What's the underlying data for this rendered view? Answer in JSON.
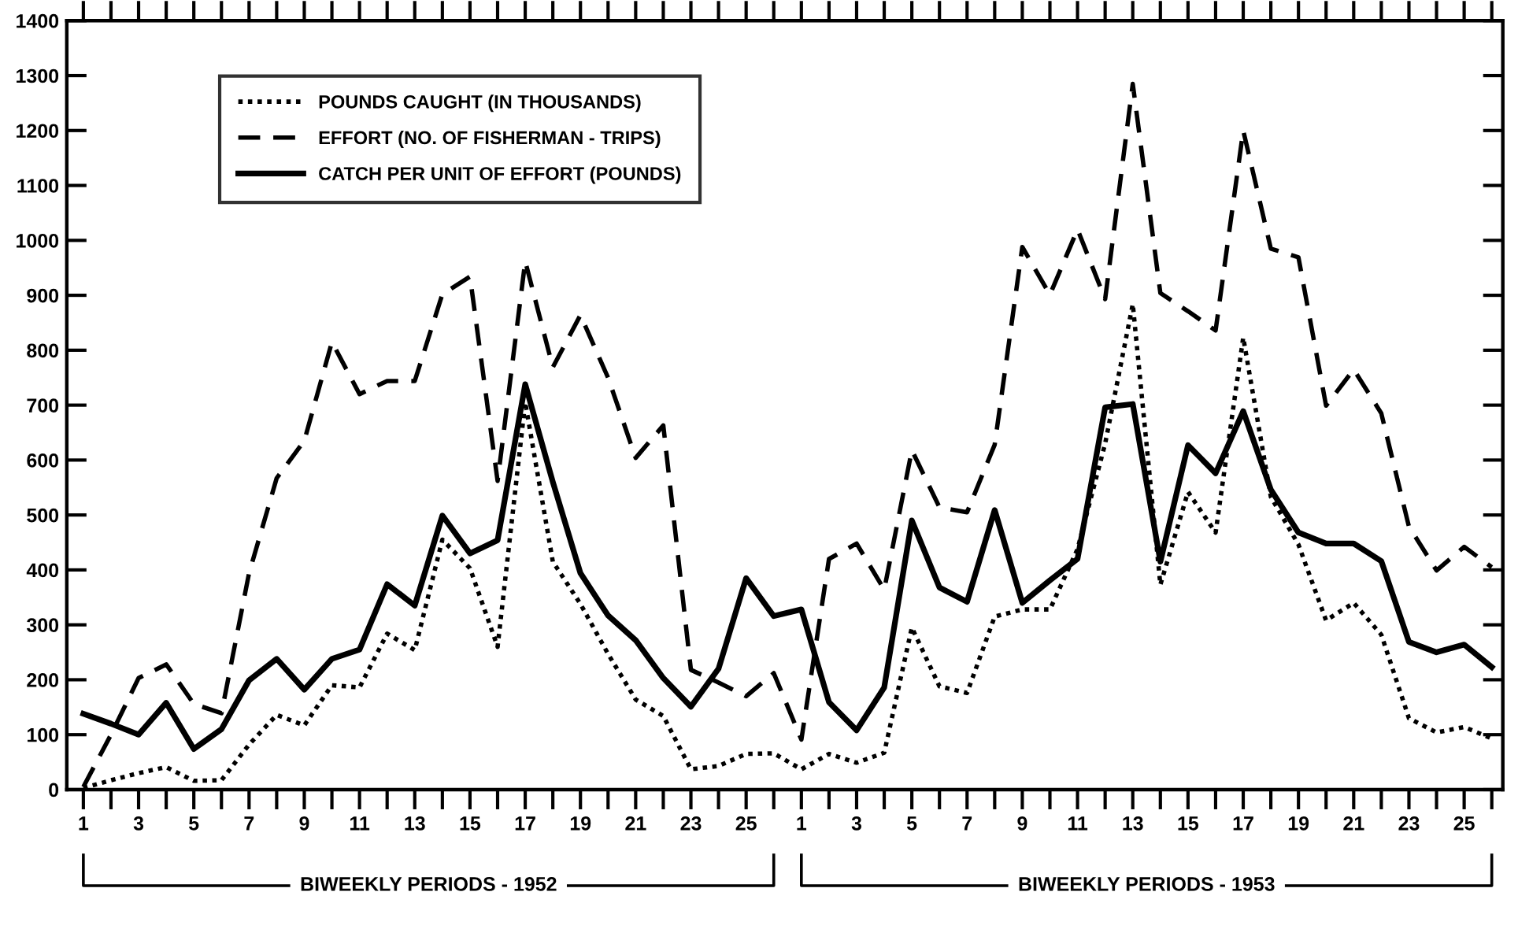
{
  "chart_data": {
    "type": "line",
    "categories": [
      "1",
      null,
      "3",
      null,
      "5",
      null,
      "7",
      null,
      "9",
      null,
      "11",
      null,
      "13",
      null,
      "15",
      null,
      "17",
      null,
      "19",
      null,
      "21",
      null,
      "23",
      null,
      "25",
      null,
      "1",
      null,
      "3",
      null,
      "5",
      null,
      "7",
      null,
      "9",
      null,
      "11",
      null,
      "13",
      null,
      "15",
      null,
      "17",
      null,
      "19",
      null,
      "21",
      null,
      "23",
      null,
      "25",
      null
    ],
    "series": [
      {
        "name": "POUNDS CAUGHT (IN THOUSANDS)",
        "color": "#000000",
        "line_style": "dotted",
        "values": [
          3,
          17,
          30,
          41,
          16,
          17,
          82,
          136,
          117,
          190,
          186,
          284,
          254,
          455,
          403,
          260,
          705,
          415,
          338,
          247,
          164,
          134,
          37,
          43,
          65,
          66,
          37,
          65,
          49,
          67,
          295,
          188,
          176,
          315,
          328,
          328,
          438,
          630,
          884,
          373,
          542,
          468,
          823,
          533,
          446,
          308,
          340,
          282,
          130,
          104,
          114,
          93
        ]
      },
      {
        "name": "EFFORT (NO. OF FISHERMAN - TRIPS)",
        "color": "#000000",
        "line_style": "dashed",
        "values": [
          5,
          100,
          203,
          228,
          156,
          139,
          394,
          567,
          635,
          815,
          720,
          744,
          744,
          902,
          934,
          562,
          962,
          769,
          864,
          750,
          604,
          663,
          218,
          195,
          170,
          212,
          91,
          420,
          448,
          364,
          618,
          514,
          505,
          628,
          988,
          901,
          1020,
          893,
          1285,
          904,
          871,
          836,
          1200,
          985,
          969,
          699,
          765,
          685,
          479,
          399,
          442,
          405
        ]
      },
      {
        "name": "CATCH PER UNIT OF EFFORT (POUNDS)",
        "color": "#000000",
        "line_style": "solid",
        "values": [
          138,
          120,
          100,
          158,
          74,
          110,
          199,
          238,
          182,
          238,
          255,
          374,
          335,
          499,
          430,
          454,
          738,
          560,
          394,
          317,
          272,
          203,
          151,
          220,
          385,
          316,
          328,
          159,
          108,
          186,
          490,
          368,
          342,
          509,
          340,
          381,
          420,
          696,
          702,
          415,
          627,
          576,
          689,
          546,
          468,
          448,
          448,
          416,
          269,
          250,
          264,
          223
        ]
      }
    ],
    "ylim": [
      0,
      1400
    ],
    "yticks": [
      0,
      100,
      200,
      300,
      400,
      500,
      600,
      700,
      800,
      900,
      1000,
      1100,
      1200,
      1300,
      1400
    ],
    "grid": false,
    "legend": "top left",
    "annotations": [
      "BIWEEKLY PERIODS - 1952",
      "BIWEEKLY PERIODS - 1953"
    ]
  }
}
